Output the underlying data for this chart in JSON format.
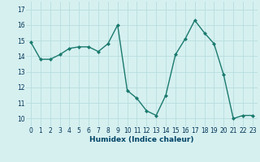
{
  "x": [
    0,
    1,
    2,
    3,
    4,
    5,
    6,
    7,
    8,
    9,
    10,
    11,
    12,
    13,
    14,
    15,
    16,
    17,
    18,
    19,
    20,
    21,
    22,
    23
  ],
  "y": [
    14.9,
    13.8,
    13.8,
    14.1,
    14.5,
    14.6,
    14.6,
    14.3,
    14.8,
    16.0,
    11.8,
    11.3,
    10.5,
    10.2,
    11.5,
    14.1,
    15.1,
    16.3,
    15.5,
    14.8,
    12.8,
    10.0,
    10.2,
    10.2
  ],
  "xlabel": "Humidex (Indice chaleur)",
  "ylim": [
    9.5,
    17.5
  ],
  "xlim": [
    -0.5,
    23.5
  ],
  "yticks": [
    10,
    11,
    12,
    13,
    14,
    15,
    16,
    17
  ],
  "xticks": [
    0,
    1,
    2,
    3,
    4,
    5,
    6,
    7,
    8,
    9,
    10,
    11,
    12,
    13,
    14,
    15,
    16,
    17,
    18,
    19,
    20,
    21,
    22,
    23
  ],
  "line_color": "#1a7a6e",
  "marker_color": "#1a7a6e",
  "bg_color": "#d6f0f0",
  "grid_color": "#b8dede",
  "marker_size": 2.0,
  "line_width": 1.0,
  "tick_fontsize": 5.5,
  "xlabel_fontsize": 6.5,
  "xlabel_color": "#004466"
}
